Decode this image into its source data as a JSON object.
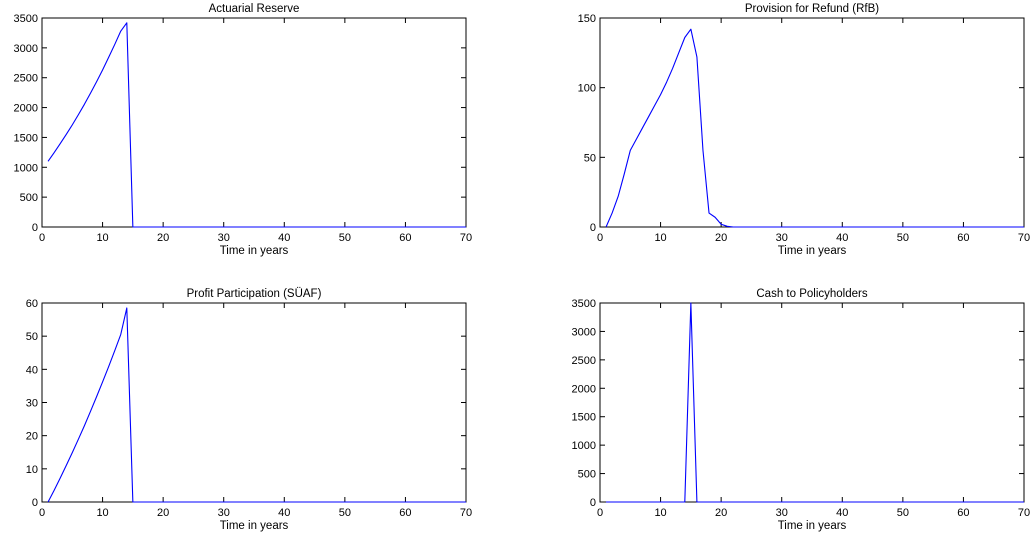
{
  "chart_data": [
    {
      "type": "line",
      "title": "Actuarial Reserve",
      "xlabel": "Time in years",
      "ylabel": "",
      "xlim": [
        0,
        70
      ],
      "ylim": [
        0,
        3500
      ],
      "xticks": [
        0,
        10,
        20,
        30,
        40,
        50,
        60,
        70
      ],
      "yticks": [
        0,
        500,
        1000,
        1500,
        2000,
        2500,
        3000,
        3500
      ],
      "grid": false,
      "color": "#0000ff",
      "series": [
        {
          "x": [
            1,
            2,
            3,
            4,
            5,
            6,
            7,
            8,
            9,
            10,
            11,
            12,
            13,
            14,
            15,
            16,
            17,
            18,
            19,
            20,
            21,
            22,
            23,
            24,
            25,
            26,
            27,
            28,
            29,
            30,
            31,
            32,
            33,
            34,
            35,
            36,
            37,
            38,
            39,
            40,
            41,
            42,
            43,
            44,
            45,
            46,
            47,
            48,
            49,
            50,
            51,
            52,
            53,
            54,
            55,
            56,
            57,
            58,
            59,
            60,
            61,
            62,
            63,
            64,
            65,
            66,
            67,
            68,
            69,
            70
          ],
          "y": [
            1100,
            1245,
            1395,
            1550,
            1710,
            1880,
            2055,
            2240,
            2430,
            2630,
            2840,
            3055,
            3280,
            3420,
            0,
            0,
            0,
            0,
            0,
            0,
            0,
            0,
            0,
            0,
            0,
            0,
            0,
            0,
            0,
            0,
            0,
            0,
            0,
            0,
            0,
            0,
            0,
            0,
            0,
            0,
            0,
            0,
            0,
            0,
            0,
            0,
            0,
            0,
            0,
            0,
            0,
            0,
            0,
            0,
            0,
            0,
            0,
            0,
            0,
            0,
            0,
            0,
            0,
            0,
            0,
            0,
            0,
            0,
            0,
            0
          ]
        }
      ]
    },
    {
      "type": "line",
      "title": "Provision for Refund (RfB)",
      "xlabel": "Time in years",
      "ylabel": "",
      "xlim": [
        0,
        70
      ],
      "ylim": [
        0,
        150
      ],
      "xticks": [
        0,
        10,
        20,
        30,
        40,
        50,
        60,
        70
      ],
      "yticks": [
        0,
        50,
        100,
        150
      ],
      "grid": false,
      "color": "#0000ff",
      "series": [
        {
          "x": [
            1,
            2,
            3,
            4,
            5,
            6,
            7,
            8,
            9,
            10,
            11,
            12,
            13,
            14,
            15,
            16,
            17,
            18,
            19,
            20,
            21,
            22,
            23,
            24,
            25,
            26,
            27,
            28,
            29,
            30,
            31,
            32,
            33,
            34,
            35,
            36,
            37,
            38,
            39,
            40,
            41,
            42,
            43,
            44,
            45,
            46,
            47,
            48,
            49,
            50,
            51,
            52,
            53,
            54,
            55,
            56,
            57,
            58,
            59,
            60,
            61,
            62,
            63,
            64,
            65,
            66,
            67,
            68,
            69,
            70
          ],
          "y": [
            0,
            10,
            22,
            38,
            55,
            63,
            71,
            79,
            87,
            95,
            104,
            114,
            125,
            136,
            142,
            122,
            55,
            10,
            7,
            2,
            0.5,
            0,
            0,
            0,
            0,
            0,
            0,
            0,
            0,
            0,
            0,
            0,
            0,
            0,
            0,
            0,
            0,
            0,
            0,
            0,
            0,
            0,
            0,
            0,
            0,
            0,
            0,
            0,
            0,
            0,
            0,
            0,
            0,
            0,
            0,
            0,
            0,
            0,
            0,
            0,
            0,
            0,
            0,
            0,
            0,
            0,
            0,
            0,
            0,
            0
          ]
        }
      ]
    },
    {
      "type": "line",
      "title": "Profit Participation (SÜAF)",
      "xlabel": "Time in years",
      "ylabel": "",
      "xlim": [
        0,
        70
      ],
      "ylim": [
        0,
        60
      ],
      "xticks": [
        0,
        10,
        20,
        30,
        40,
        50,
        60,
        70
      ],
      "yticks": [
        0,
        10,
        20,
        30,
        40,
        50,
        60
      ],
      "grid": false,
      "color": "#0000ff",
      "series": [
        {
          "x": [
            1,
            2,
            3,
            4,
            5,
            6,
            7,
            8,
            9,
            10,
            11,
            12,
            13,
            14,
            15,
            16,
            17,
            18,
            19,
            20,
            21,
            22,
            23,
            24,
            25,
            26,
            27,
            28,
            29,
            30,
            31,
            32,
            33,
            34,
            35,
            36,
            37,
            38,
            39,
            40,
            41,
            42,
            43,
            44,
            45,
            46,
            47,
            48,
            49,
            50,
            51,
            52,
            53,
            54,
            55,
            56,
            57,
            58,
            59,
            60,
            61,
            62,
            63,
            64,
            65,
            66,
            67,
            68,
            69,
            70
          ],
          "y": [
            0,
            3.5,
            7.2,
            11,
            14.9,
            18.9,
            23,
            27.3,
            31.7,
            36.2,
            40.8,
            45.6,
            50.5,
            58.5,
            0,
            0,
            0,
            0,
            0,
            0,
            0,
            0,
            0,
            0,
            0,
            0,
            0,
            0,
            0,
            0,
            0,
            0,
            0,
            0,
            0,
            0,
            0,
            0,
            0,
            0,
            0,
            0,
            0,
            0,
            0,
            0,
            0,
            0,
            0,
            0,
            0,
            0,
            0,
            0,
            0,
            0,
            0,
            0,
            0,
            0,
            0,
            0,
            0,
            0,
            0,
            0,
            0,
            0,
            0,
            0
          ]
        }
      ]
    },
    {
      "type": "line",
      "title": "Cash to Policyholders",
      "xlabel": "Time in years",
      "ylabel": "",
      "xlim": [
        0,
        70
      ],
      "ylim": [
        0,
        3500
      ],
      "xticks": [
        0,
        10,
        20,
        30,
        40,
        50,
        60,
        70
      ],
      "yticks": [
        0,
        500,
        1000,
        1500,
        2000,
        2500,
        3000,
        3500
      ],
      "grid": false,
      "color": "#0000ff",
      "series": [
        {
          "x": [
            1,
            2,
            3,
            4,
            5,
            6,
            7,
            8,
            9,
            10,
            11,
            12,
            13,
            14,
            15,
            16,
            17,
            18,
            19,
            20,
            21,
            22,
            23,
            24,
            25,
            26,
            27,
            28,
            29,
            30,
            31,
            32,
            33,
            34,
            35,
            36,
            37,
            38,
            39,
            40,
            41,
            42,
            43,
            44,
            45,
            46,
            47,
            48,
            49,
            50,
            51,
            52,
            53,
            54,
            55,
            56,
            57,
            58,
            59,
            60,
            61,
            62,
            63,
            64,
            65,
            66,
            67,
            68,
            69,
            70
          ],
          "y": [
            0,
            0,
            0,
            0,
            0,
            0,
            0,
            0,
            0,
            0,
            0,
            0,
            0,
            0,
            3500,
            0,
            0,
            0,
            0,
            0,
            0,
            0,
            0,
            0,
            0,
            0,
            0,
            0,
            0,
            0,
            0,
            0,
            0,
            0,
            0,
            0,
            0,
            0,
            0,
            0,
            0,
            0,
            0,
            0,
            0,
            0,
            0,
            0,
            0,
            0,
            0,
            0,
            0,
            0,
            0,
            0,
            0,
            0,
            0,
            0,
            0,
            0,
            0,
            0,
            0,
            0,
            0,
            0,
            0,
            0
          ]
        }
      ]
    }
  ]
}
